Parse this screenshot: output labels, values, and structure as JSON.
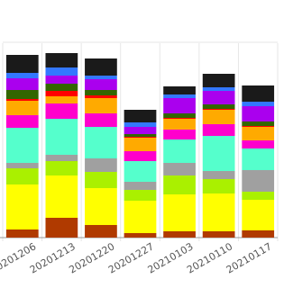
{
  "chart_data": {
    "type": "stacked_bar",
    "categories": [
      "20201206",
      "20201213",
      "20201220",
      "20201227",
      "20210103",
      "20210110",
      "20210117"
    ],
    "ylim": [
      0,
      216
    ],
    "series": [
      {
        "color": "#b03a00",
        "values": [
          9,
          22,
          14,
          5,
          7,
          7,
          8
        ]
      },
      {
        "color": "#ffff00",
        "values": [
          50,
          47,
          41,
          36,
          41,
          42,
          34
        ]
      },
      {
        "color": "#aaf000",
        "values": [
          18,
          16,
          18,
          12,
          21,
          16,
          9
        ]
      },
      {
        "color": "#a0a0a0",
        "values": [
          6,
          7,
          15,
          9,
          14,
          9,
          24
        ]
      },
      {
        "color": "#55ffcc",
        "values": [
          39,
          40,
          35,
          23,
          26,
          39,
          24
        ]
      },
      {
        "color": "#ff00cc",
        "values": [
          14,
          17,
          15,
          11,
          11,
          13,
          9
        ]
      },
      {
        "color": "#ffaa00",
        "values": [
          16,
          8,
          17,
          15,
          12,
          16,
          15
        ]
      },
      {
        "color": "#ff0000",
        "values": [
          2,
          6,
          3,
          1,
          1,
          1,
          1
        ]
      },
      {
        "color": "#336600",
        "values": [
          10,
          8,
          6,
          3,
          5,
          5,
          5
        ]
      },
      {
        "color": "#aa00ee",
        "values": [
          13,
          9,
          12,
          8,
          17,
          15,
          17
        ]
      },
      {
        "color": "#3377ff",
        "values": [
          6,
          9,
          4,
          5,
          4,
          4,
          5
        ]
      },
      {
        "color": "#1a1a1a",
        "values": [
          20,
          16,
          19,
          14,
          9,
          15,
          18
        ]
      }
    ]
  }
}
